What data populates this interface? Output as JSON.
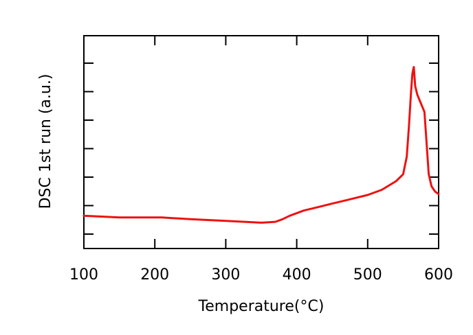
{
  "chart_data": {
    "type": "line",
    "title": "",
    "xlabel": "Temperature(°C)",
    "ylabel": "DSC 1st run (a.u.)",
    "xlim": [
      100,
      600
    ],
    "xticks": [
      100,
      200,
      300,
      400,
      500,
      600
    ],
    "xtick_labels": [
      "100",
      "200",
      "300",
      "400",
      "500",
      "600"
    ],
    "ylim": [
      0,
      1
    ],
    "yticks_unlabeled": 7,
    "grid": false,
    "legend": "none",
    "series": [
      {
        "color": "#ee1111",
        "x": [
          100,
          150,
          210,
          250,
          300,
          350,
          370,
          380,
          390,
          410,
          430,
          450,
          480,
          500,
          520,
          540,
          550,
          555,
          558,
          561,
          563,
          565,
          567,
          570,
          575,
          580,
          583,
          586,
          590,
          595,
          600
        ],
        "y": [
          0.11,
          0.1,
          0.1,
          0.09,
          0.08,
          0.07,
          0.075,
          0.09,
          0.11,
          0.14,
          0.16,
          0.18,
          0.21,
          0.23,
          0.26,
          0.31,
          0.35,
          0.45,
          0.62,
          0.82,
          0.93,
          0.97,
          0.86,
          0.81,
          0.76,
          0.71,
          0.53,
          0.35,
          0.28,
          0.25,
          0.235
        ]
      }
    ]
  }
}
